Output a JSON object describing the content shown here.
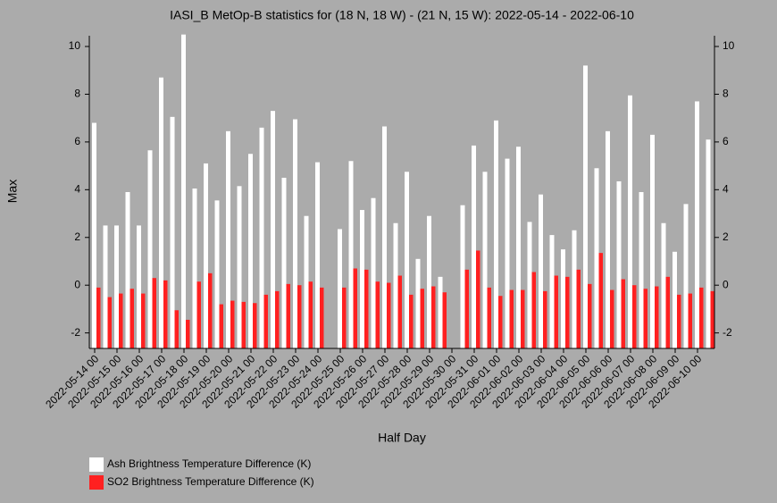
{
  "chart_data": {
    "type": "bar",
    "title": "IASI_B MetOp-B statistics for (18 N, 18 W) - (21 N, 15 W): 2022-05-14 - 2022-06-10",
    "x_label": "Half Day",
    "y_label": "Max",
    "categories": [
      "2022-05-14 00",
      null,
      "2022-05-15 00",
      null,
      "2022-05-16 00",
      null,
      "2022-05-17 00",
      null,
      "2022-05-18 00",
      null,
      "2022-05-19 00",
      null,
      "2022-05-20 00",
      null,
      "2022-05-21 00",
      null,
      "2022-05-22 00",
      null,
      "2022-05-23 00",
      null,
      "2022-05-24 00",
      null,
      "2022-05-25 00",
      null,
      "2022-05-26 00",
      null,
      "2022-05-27 00",
      null,
      "2022-05-28 00",
      null,
      "2022-05-29 00",
      null,
      "2022-05-30 00",
      null,
      "2022-05-31 00",
      null,
      "2022-06-01 00",
      null,
      "2022-06-02 00",
      null,
      "2022-06-03 00",
      null,
      "2022-06-04 00",
      null,
      "2022-06-05 00",
      null,
      "2022-06-06 00",
      null,
      "2022-06-07 00",
      null,
      "2022-06-08 00",
      null,
      "2022-06-09 00",
      null,
      "2022-06-10 00",
      null
    ],
    "series": [
      {
        "name": "Ash Brightness Temperature Difference (K)",
        "color": "#ffffff",
        "values": [
          6.8,
          2.5,
          2.5,
          3.9,
          2.5,
          5.65,
          8.7,
          7.05,
          10.5,
          4.05,
          5.1,
          3.55,
          6.45,
          4.15,
          5.5,
          6.6,
          7.3,
          4.5,
          6.95,
          2.9,
          5.15,
          null,
          2.35,
          5.2,
          3.15,
          3.65,
          6.65,
          2.6,
          4.75,
          1.1,
          2.9,
          0.35,
          null,
          3.35,
          5.85,
          4.75,
          6.9,
          5.3,
          5.8,
          2.65,
          3.8,
          2.1,
          1.5,
          2.3,
          9.2,
          4.9,
          6.45,
          4.35,
          7.95,
          3.9,
          6.3,
          2.6,
          1.4,
          3.4,
          7.7,
          6.1
        ]
      },
      {
        "name": "SO2 Brightness Temperature Difference (K)",
        "color": "#ff2020",
        "values": [
          -0.1,
          -0.5,
          -0.35,
          -0.15,
          -0.35,
          0.3,
          0.2,
          -1.05,
          -1.45,
          0.15,
          0.5,
          -0.8,
          -0.65,
          -0.7,
          -0.75,
          -0.4,
          -0.25,
          0.05,
          0.0,
          0.15,
          -0.1,
          null,
          -0.1,
          0.7,
          0.65,
          0.15,
          0.1,
          0.4,
          -0.4,
          -0.15,
          -0.05,
          -0.3,
          null,
          0.65,
          1.45,
          -0.1,
          -0.45,
          -0.2,
          -0.2,
          0.55,
          -0.25,
          0.4,
          0.35,
          0.65,
          0.05,
          1.35,
          -0.2,
          0.25,
          0.0,
          -0.15,
          -0.05,
          0.35,
          -0.4,
          -0.35,
          -0.1,
          -0.25
        ]
      }
    ],
    "ylim": [
      -2.65,
      10.45
    ],
    "yticks": [
      -2,
      0,
      2,
      4,
      6,
      8,
      10
    ],
    "right_axis_mirror": true
  }
}
